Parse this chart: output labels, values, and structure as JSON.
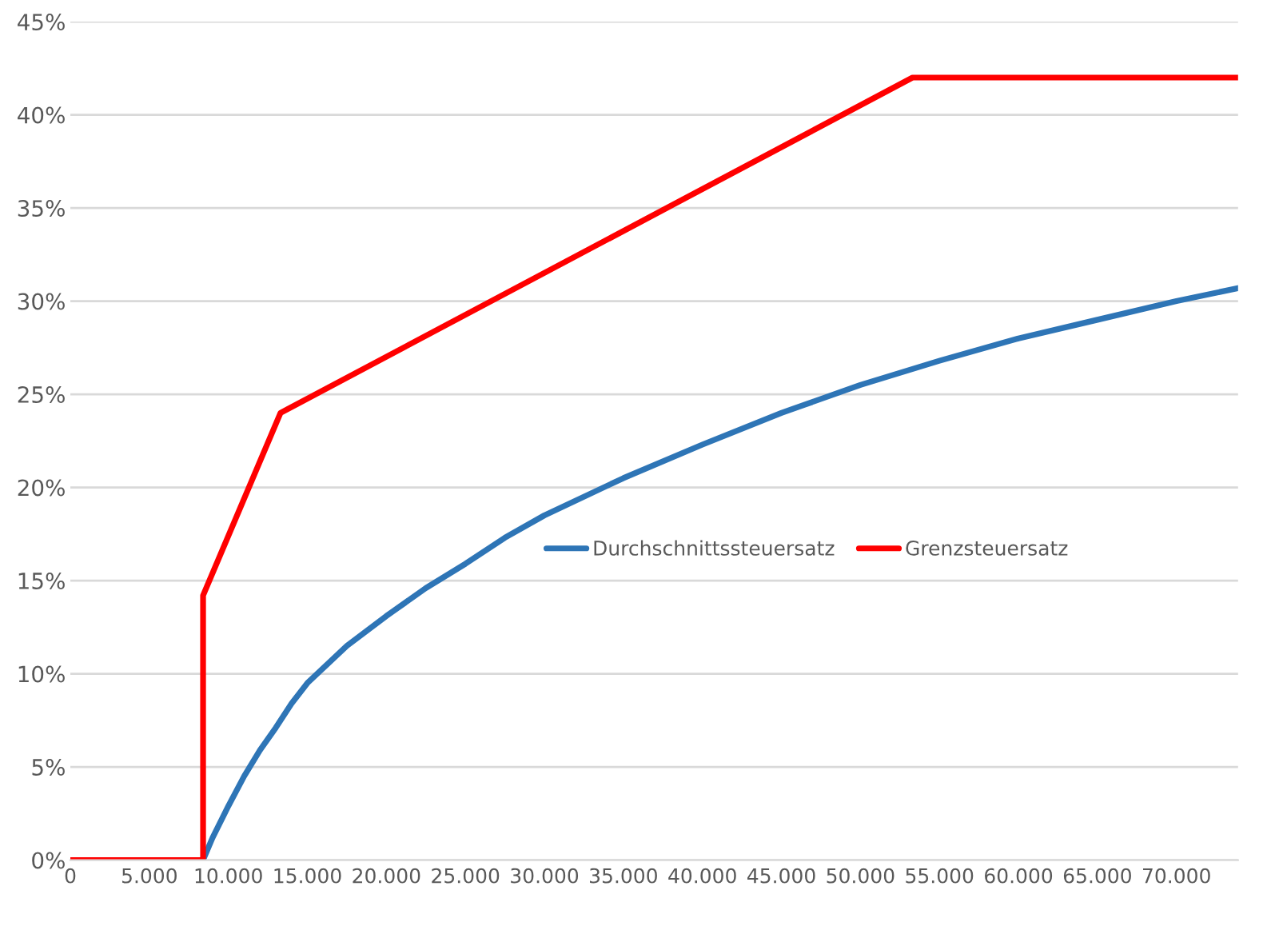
{
  "chart_data": {
    "type": "line",
    "xlim": [
      0,
      73900
    ],
    "ylim": [
      0,
      45
    ],
    "xticks": [
      {
        "value": 0,
        "label": "0"
      },
      {
        "value": 5000,
        "label": "5.000"
      },
      {
        "value": 10000,
        "label": "10.000"
      },
      {
        "value": 15000,
        "label": "15.000"
      },
      {
        "value": 20000,
        "label": "20.000"
      },
      {
        "value": 25000,
        "label": "25.000"
      },
      {
        "value": 30000,
        "label": "30.000"
      },
      {
        "value": 35000,
        "label": "35.000"
      },
      {
        "value": 40000,
        "label": "40.000"
      },
      {
        "value": 45000,
        "label": "45.000"
      },
      {
        "value": 50000,
        "label": "50.000"
      },
      {
        "value": 55000,
        "label": "55.000"
      },
      {
        "value": 60000,
        "label": "60.000"
      },
      {
        "value": 65000,
        "label": "65.000"
      },
      {
        "value": 70000,
        "label": "70.000"
      }
    ],
    "yticks": [
      {
        "value": 0,
        "label": "0%"
      },
      {
        "value": 5,
        "label": "5%"
      },
      {
        "value": 10,
        "label": "10%"
      },
      {
        "value": 15,
        "label": "15%"
      },
      {
        "value": 20,
        "label": "20%"
      },
      {
        "value": 25,
        "label": "25%"
      },
      {
        "value": 30,
        "label": "30%"
      },
      {
        "value": 35,
        "label": "35%"
      },
      {
        "value": 40,
        "label": "40%"
      },
      {
        "value": 45,
        "label": "45%"
      }
    ],
    "grid": "y",
    "legend": "right",
    "marker": "none",
    "line_style": "solid",
    "series": [
      {
        "name": "Durchschnittssteuersatz",
        "color": "#2e75b6",
        "x": [
          8400,
          9000,
          10000,
          11000,
          12000,
          13000,
          14000,
          15000,
          17500,
          20000,
          22500,
          25000,
          27500,
          30000,
          35000,
          40000,
          45000,
          50000,
          55000,
          60000,
          65000,
          70000,
          73900
        ],
        "values": [
          0,
          1.2,
          2.9,
          4.5,
          5.9,
          7.1,
          8.4,
          9.5,
          11.5,
          13.1,
          14.6,
          15.9,
          17.3,
          18.5,
          20.5,
          22.3,
          24.0,
          25.5,
          26.8,
          28.0,
          29.0,
          30.0,
          30.7
        ]
      },
      {
        "name": "Grenzsteuersatz",
        "color": "#ff0000",
        "x": [
          0,
          8400,
          8400,
          13300,
          53300,
          73900
        ],
        "values": [
          0,
          0,
          14.2,
          24,
          42,
          42
        ]
      }
    ]
  }
}
